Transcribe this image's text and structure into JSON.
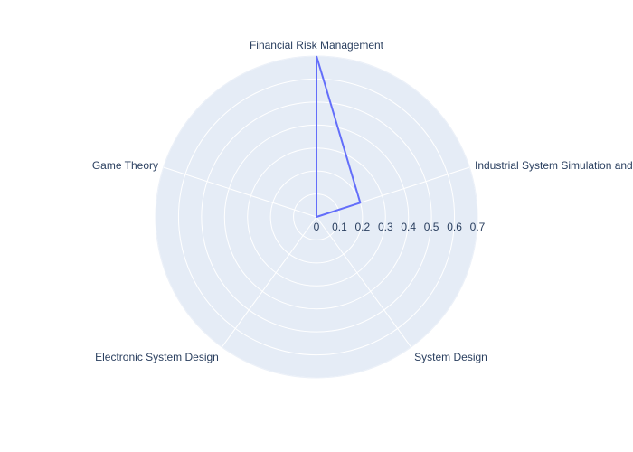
{
  "chart_data": {
    "type": "radar",
    "categories": [
      "Financial Risk Management",
      "Industrial System Simulation and",
      "System Design",
      "Electronic System Design",
      "Game Theory"
    ],
    "series": [
      {
        "values": [
          0.7,
          0.2,
          0,
          0,
          0
        ]
      }
    ],
    "radial_axis": {
      "range": [
        0,
        0.7
      ],
      "ticks": [
        "0",
        "0.1",
        "0.2",
        "0.3",
        "0.4",
        "0.5",
        "0.6",
        "0.7"
      ]
    },
    "grid": true,
    "legend": "none",
    "colors": {
      "series": "#636efa",
      "polar_bg": "#e5ecf6",
      "grid": "#ffffff",
      "text": "#2a3f5f"
    }
  }
}
